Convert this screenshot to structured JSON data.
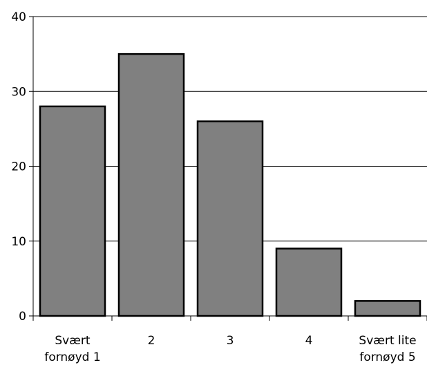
{
  "chart_data": {
    "type": "bar",
    "title": "",
    "xlabel": "",
    "ylabel": "",
    "categories": [
      [
        "Svært",
        "fornøyd 1"
      ],
      [
        "2"
      ],
      [
        "3"
      ],
      [
        "4"
      ],
      [
        "Svært lite",
        "fornøyd 5"
      ]
    ],
    "values": [
      28,
      35,
      26,
      9,
      2
    ],
    "ylim": [
      0,
      40
    ],
    "yticks": [
      "0",
      "10",
      "20",
      "30",
      "40"
    ],
    "grid": true,
    "legend": "none",
    "colors": {
      "bar_fill": "#808080",
      "bar_stroke": "#000000",
      "grid": "#000000",
      "axis": "#000000",
      "background": "#ffffff"
    }
  }
}
